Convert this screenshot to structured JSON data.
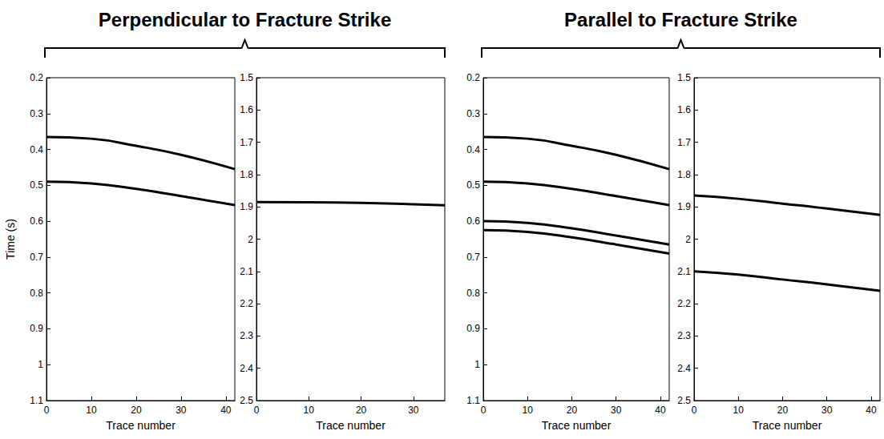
{
  "chart_data": [
    {
      "type": "line",
      "group": "Perpendicular to Fracture Strike",
      "x_label": "Trace number",
      "y_label": "Time (s)",
      "xlim": [
        0,
        42
      ],
      "xticks": [
        0,
        10,
        20,
        30,
        40
      ],
      "ylim": [
        0.2,
        1.1
      ],
      "yticks": [
        0.2,
        0.3,
        0.4,
        0.5,
        0.6,
        0.7,
        0.8,
        0.9,
        1,
        1.1
      ],
      "grid": false,
      "series": [
        {
          "x": [
            0,
            10,
            20,
            30,
            42
          ],
          "values": [
            0.365,
            0.37,
            0.39,
            0.415,
            0.455
          ],
          "color": "#000000",
          "line_style": "solid"
        },
        {
          "x": [
            0,
            10,
            20,
            30,
            42
          ],
          "values": [
            0.49,
            0.495,
            0.51,
            0.53,
            0.555
          ],
          "color": "#000000",
          "line_style": "solid"
        }
      ]
    },
    {
      "type": "line",
      "group": "Perpendicular to Fracture Strike",
      "x_label": "Trace number",
      "xlim": [
        0,
        36
      ],
      "xticks": [
        0,
        10,
        20,
        30
      ],
      "ylim": [
        1.5,
        2.5
      ],
      "yticks": [
        1.5,
        1.6,
        1.7,
        1.8,
        1.9,
        2,
        2.1,
        2.2,
        2.3,
        2.4,
        2.5
      ],
      "grid": false,
      "series": [
        {
          "x": [
            0,
            10,
            20,
            30,
            36
          ],
          "values": [
            1.885,
            1.886,
            1.888,
            1.892,
            1.895
          ],
          "color": "#000000",
          "line_style": "solid"
        }
      ]
    },
    {
      "type": "line",
      "group": "Parallel to Fracture Strike",
      "x_label": "Trace number",
      "xlim": [
        0,
        42
      ],
      "xticks": [
        0,
        10,
        20,
        30,
        40
      ],
      "ylim": [
        0.2,
        1.1
      ],
      "yticks": [
        0.2,
        0.3,
        0.4,
        0.5,
        0.6,
        0.7,
        0.8,
        0.9,
        1,
        1.1
      ],
      "grid": false,
      "series": [
        {
          "x": [
            0,
            10,
            20,
            30,
            42
          ],
          "values": [
            0.365,
            0.37,
            0.39,
            0.415,
            0.455
          ],
          "color": "#000000",
          "line_style": "solid"
        },
        {
          "x": [
            0,
            10,
            20,
            30,
            42
          ],
          "values": [
            0.49,
            0.495,
            0.51,
            0.53,
            0.555
          ],
          "color": "#000000",
          "line_style": "solid"
        },
        {
          "x": [
            0,
            10,
            20,
            30,
            42
          ],
          "values": [
            0.6,
            0.605,
            0.62,
            0.64,
            0.665
          ],
          "color": "#000000",
          "line_style": "solid"
        },
        {
          "x": [
            0,
            10,
            20,
            30,
            42
          ],
          "values": [
            0.625,
            0.63,
            0.645,
            0.665,
            0.69
          ],
          "color": "#000000",
          "line_style": "solid"
        }
      ]
    },
    {
      "type": "line",
      "group": "Parallel to Fracture Strike",
      "x_label": "Trace number",
      "xlim": [
        0,
        42
      ],
      "xticks": [
        0,
        10,
        20,
        30,
        40
      ],
      "ylim": [
        1.5,
        2.5
      ],
      "yticks": [
        1.5,
        1.6,
        1.7,
        1.8,
        1.9,
        2,
        2.1,
        2.2,
        2.3,
        2.4,
        2.5
      ],
      "grid": false,
      "series": [
        {
          "x": [
            0,
            10,
            20,
            30,
            42
          ],
          "values": [
            1.865,
            1.875,
            1.89,
            1.905,
            1.925
          ],
          "color": "#000000",
          "line_style": "solid"
        },
        {
          "x": [
            0,
            10,
            20,
            30,
            42
          ],
          "values": [
            2.1,
            2.11,
            2.125,
            2.14,
            2.16
          ],
          "color": "#000000",
          "line_style": "solid"
        }
      ]
    }
  ]
}
